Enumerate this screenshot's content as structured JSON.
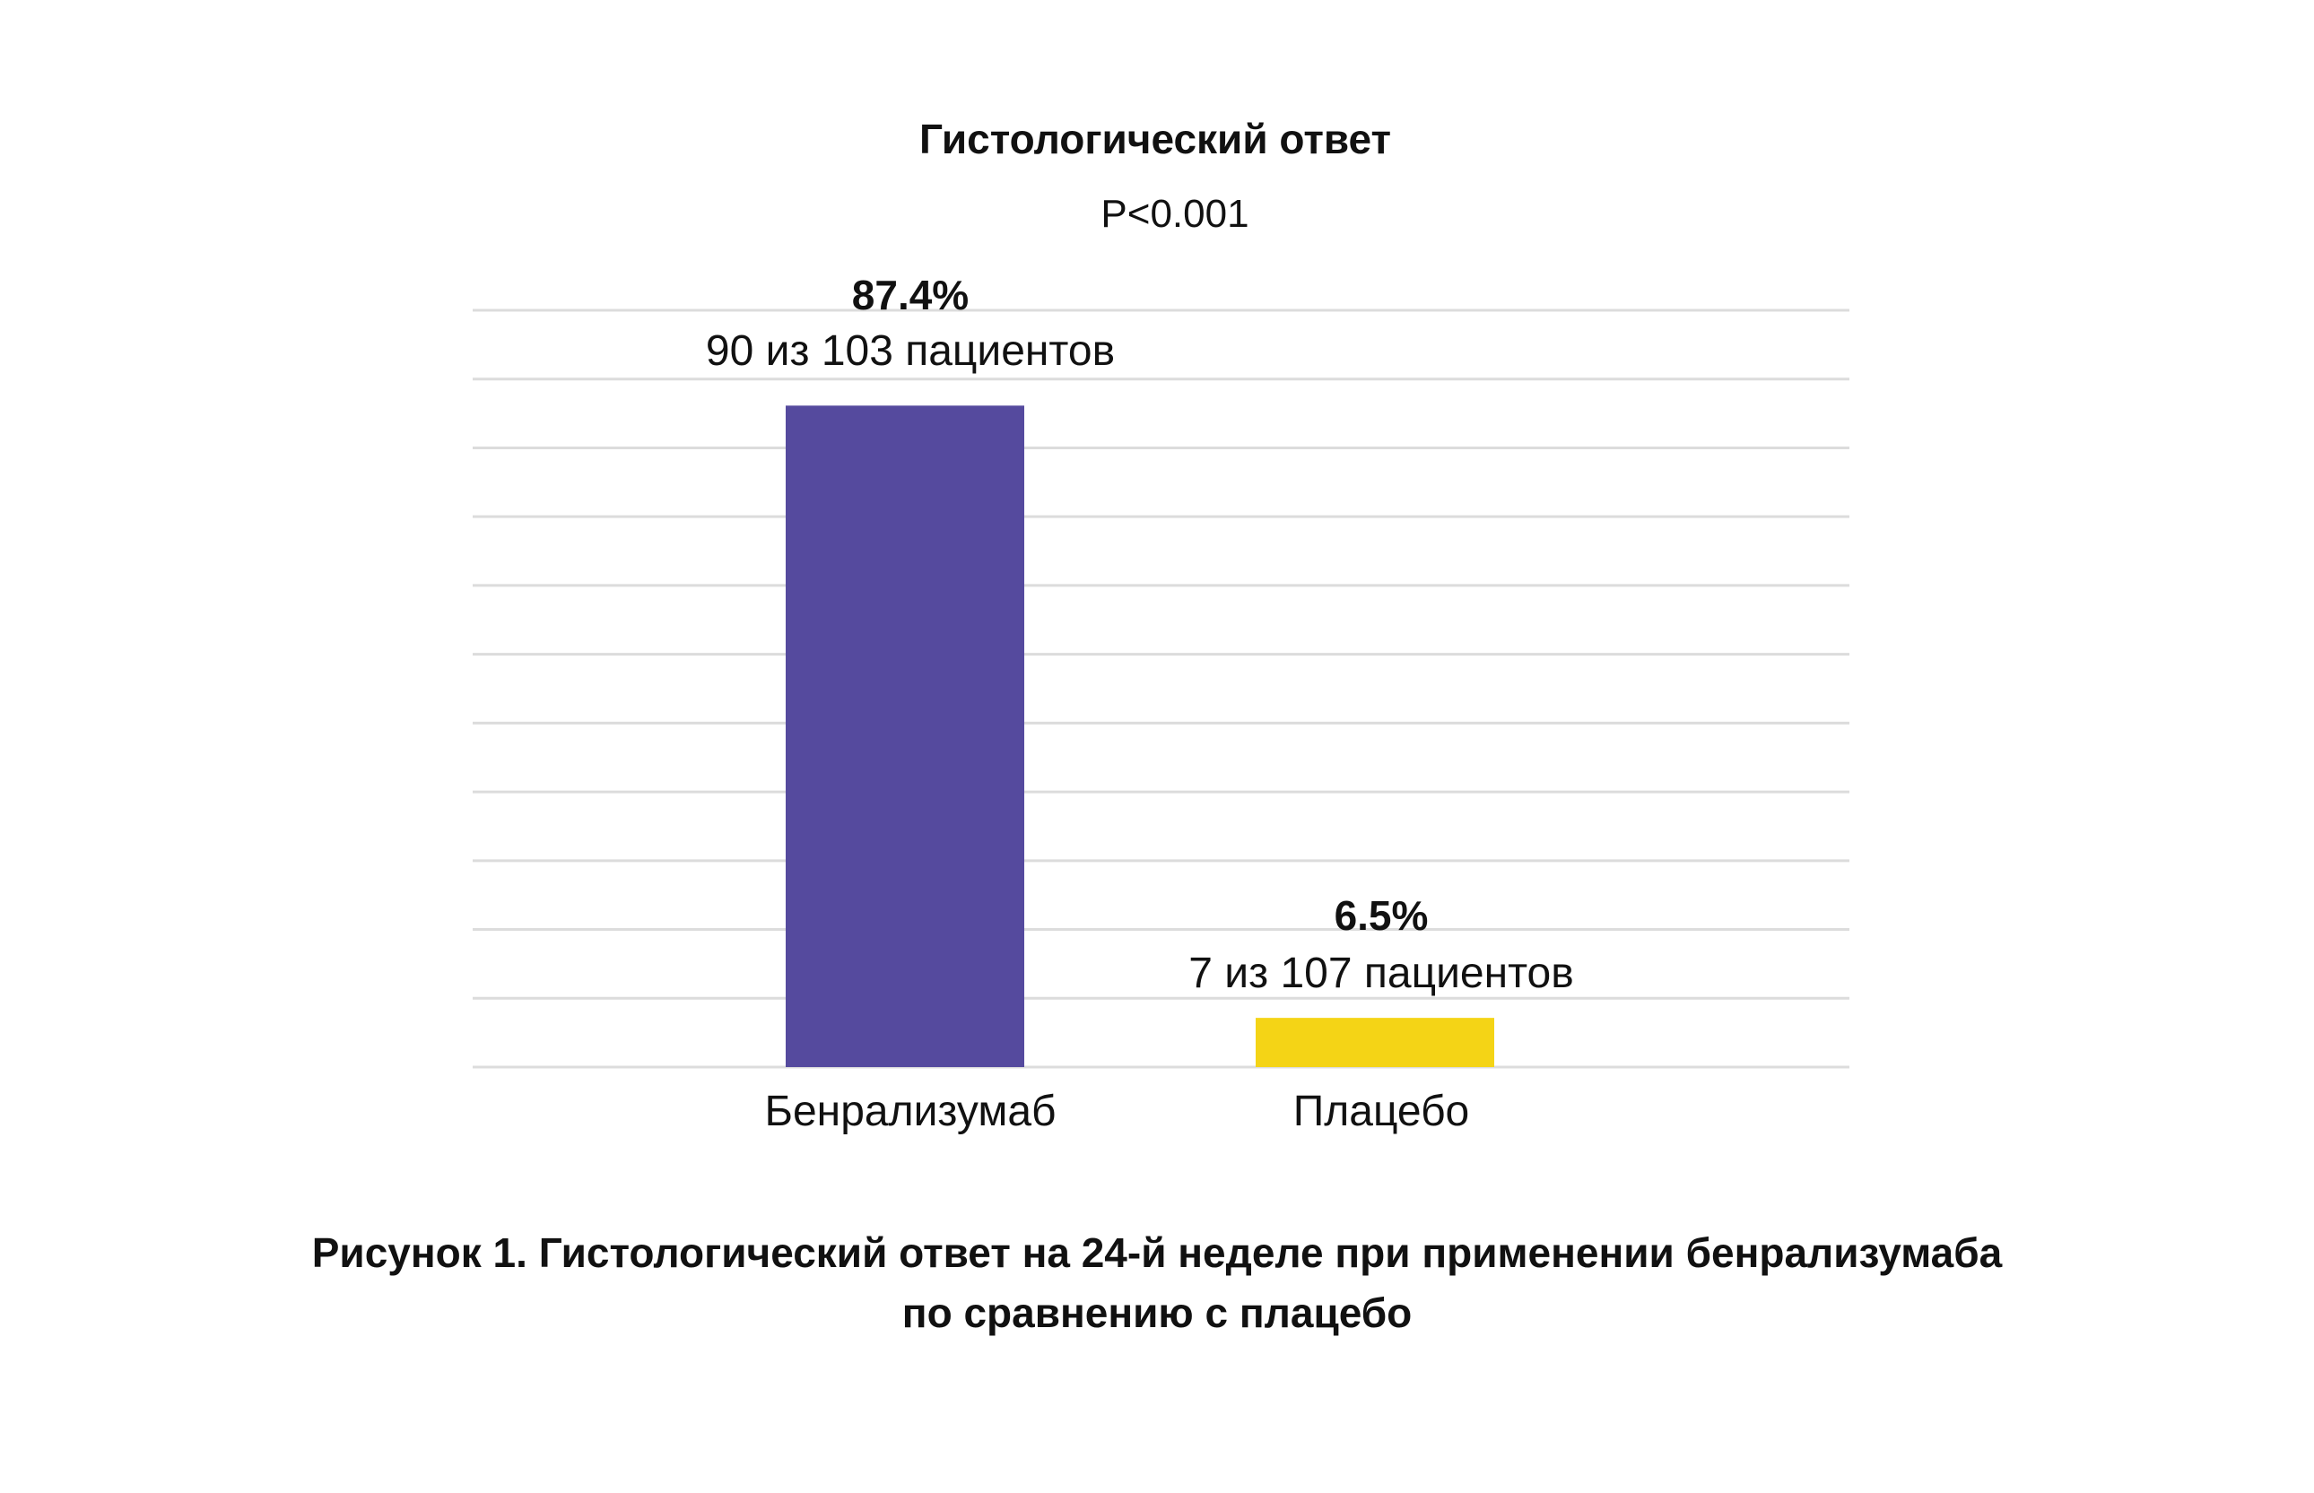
{
  "chart_data": {
    "type": "bar",
    "title": "Гистологический ответ",
    "subtitle": "P<0.001",
    "categories": [
      "Бенрализумаб",
      "Плацебо"
    ],
    "values": [
      87.4,
      6.5
    ],
    "value_labels": [
      "87.4%",
      "6.5%"
    ],
    "count_labels": [
      "90 из 103 пациентов",
      "7 из 107 пациентов"
    ],
    "colors": [
      "#554a9e",
      "#f4d416"
    ],
    "ylim": [
      0,
      100
    ],
    "unit": "%",
    "grid": true,
    "y_axis_labels_visible": false
  },
  "caption": {
    "line1": "Рисунок 1. Гистологический ответ на 24-й неделе при применении бенрализумаба",
    "line2": "по сравнению с плацебо"
  }
}
